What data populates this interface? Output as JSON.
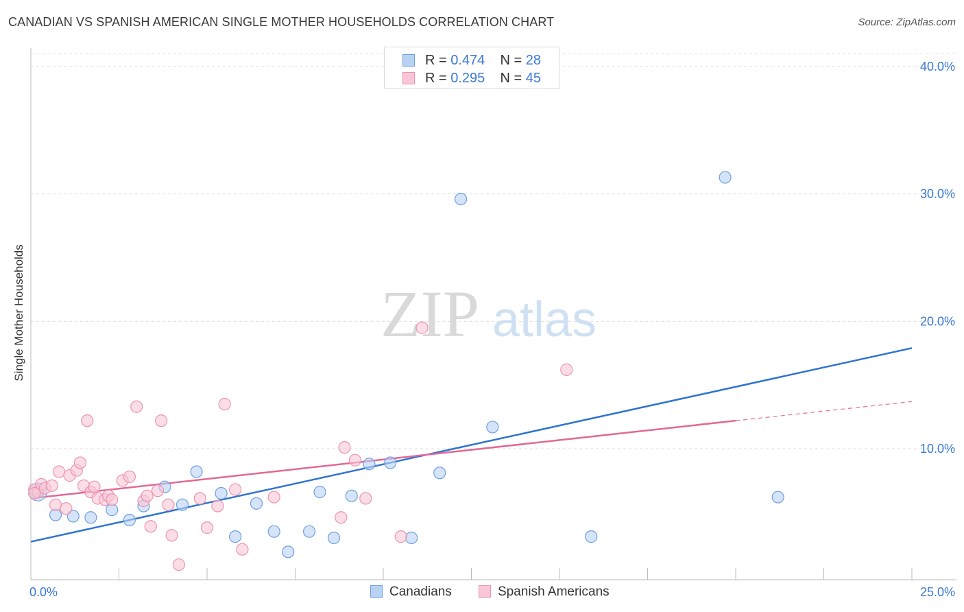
{
  "header": {
    "title": "CANADIAN VS SPANISH AMERICAN SINGLE MOTHER HOUSEHOLDS CORRELATION CHART",
    "source": "Source: ZipAtlas.com"
  },
  "watermark": {
    "zip": "ZIP",
    "atlas": "atlas"
  },
  "legend_top": {
    "rows": [
      {
        "series": "Canadians",
        "r_label": "R = ",
        "r_value": "0.474",
        "n_label": "N = ",
        "n_value": "28"
      },
      {
        "series": "Spanish Americans",
        "r_label": "R = ",
        "r_value": "0.295",
        "n_label": "N = ",
        "n_value": "45"
      }
    ]
  },
  "chart_data": {
    "type": "scatter",
    "title": "CANADIAN VS SPANISH AMERICAN SINGLE MOTHER HOUSEHOLDS CORRELATION CHART",
    "xlabel": "",
    "ylabel": "Single Mother Households",
    "xlim": [
      0,
      25
    ],
    "ylim": [
      0,
      42
    ],
    "x_ticks": [
      {
        "value": 0,
        "label": "0.0%"
      },
      {
        "value": 25,
        "label": "25.0%"
      }
    ],
    "y_ticks": [
      {
        "value": 10,
        "label": "10.0%"
      },
      {
        "value": 20,
        "label": "20.0%"
      },
      {
        "value": 30,
        "label": "30.0%"
      },
      {
        "value": 40,
        "label": "40.0%"
      }
    ],
    "grid": true,
    "legend": "bottom",
    "colors": {
      "Canadians": {
        "fill": "#b9d2f3",
        "stroke": "#6f9fe0",
        "line": "#2f74d0"
      },
      "Spanish Americans": {
        "fill": "#f8c6d6",
        "stroke": "#ec93b1",
        "line": "#e26895"
      }
    },
    "series": [
      {
        "name": "Canadians",
        "points": [
          [
            0.2,
            6.6
          ],
          [
            0.7,
            4.8
          ],
          [
            1.2,
            4.7
          ],
          [
            1.7,
            4.6
          ],
          [
            2.3,
            5.2
          ],
          [
            2.8,
            4.4
          ],
          [
            3.2,
            5.5
          ],
          [
            3.8,
            7.0
          ],
          [
            4.3,
            5.6
          ],
          [
            4.7,
            8.2
          ],
          [
            5.4,
            6.5
          ],
          [
            5.8,
            3.1
          ],
          [
            6.4,
            5.7
          ],
          [
            6.9,
            3.5
          ],
          [
            7.3,
            1.9
          ],
          [
            7.9,
            3.5
          ],
          [
            8.2,
            6.6
          ],
          [
            8.6,
            3.0
          ],
          [
            9.1,
            6.3
          ],
          [
            9.6,
            8.8
          ],
          [
            10.2,
            8.9
          ],
          [
            10.8,
            3.0
          ],
          [
            11.6,
            8.1
          ],
          [
            12.2,
            29.6
          ],
          [
            13.1,
            11.7
          ],
          [
            15.9,
            3.1
          ],
          [
            19.7,
            31.3
          ],
          [
            21.2,
            6.2
          ]
        ],
        "trend": {
          "x": [
            0,
            25
          ],
          "y": [
            2.7,
            17.9
          ],
          "extension": false
        }
      },
      {
        "name": "Spanish Americans",
        "points": [
          [
            0.1,
            6.8
          ],
          [
            0.2,
            6.6
          ],
          [
            0.3,
            7.2
          ],
          [
            0.4,
            6.9
          ],
          [
            0.6,
            7.1
          ],
          [
            0.7,
            5.6
          ],
          [
            0.8,
            8.2
          ],
          [
            1.0,
            5.3
          ],
          [
            1.1,
            7.9
          ],
          [
            1.3,
            8.3
          ],
          [
            1.4,
            8.9
          ],
          [
            1.5,
            7.1
          ],
          [
            1.6,
            12.2
          ],
          [
            1.7,
            6.6
          ],
          [
            1.8,
            7.0
          ],
          [
            1.9,
            6.1
          ],
          [
            2.1,
            6.0
          ],
          [
            2.2,
            6.3
          ],
          [
            2.3,
            6.0
          ],
          [
            2.6,
            7.5
          ],
          [
            2.8,
            7.8
          ],
          [
            3.0,
            13.3
          ],
          [
            3.2,
            5.9
          ],
          [
            3.3,
            6.3
          ],
          [
            3.4,
            3.9
          ],
          [
            3.6,
            6.7
          ],
          [
            3.7,
            12.2
          ],
          [
            3.9,
            5.6
          ],
          [
            4.0,
            3.2
          ],
          [
            4.2,
            0.9
          ],
          [
            4.8,
            6.1
          ],
          [
            5.0,
            3.8
          ],
          [
            5.3,
            5.5
          ],
          [
            5.5,
            13.5
          ],
          [
            5.8,
            6.8
          ],
          [
            6.0,
            2.1
          ],
          [
            6.9,
            6.2
          ],
          [
            8.8,
            4.6
          ],
          [
            8.9,
            10.1
          ],
          [
            9.2,
            9.1
          ],
          [
            9.5,
            6.1
          ],
          [
            10.5,
            3.1
          ],
          [
            11.1,
            19.5
          ],
          [
            15.2,
            16.2
          ],
          [
            0.1,
            6.5
          ]
        ],
        "trend": {
          "x": [
            0,
            20
          ],
          "y": [
            6.1,
            12.2
          ],
          "dashed_extension": {
            "x": [
              20,
              25
            ],
            "y": [
              12.2,
              13.7
            ]
          }
        }
      }
    ]
  },
  "legend_bottom": {
    "items": [
      {
        "label": "Canadians"
      },
      {
        "label": "Spanish Americans"
      }
    ]
  }
}
